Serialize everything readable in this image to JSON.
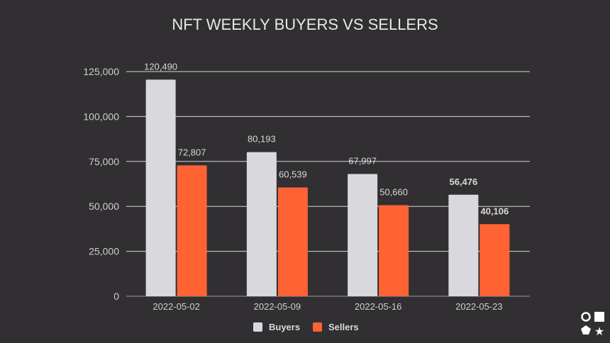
{
  "chart_data": {
    "type": "bar",
    "title": "NFT WEEKLY BUYERS VS SELLERS",
    "xlabel": "",
    "ylabel": "",
    "categories": [
      "2022-05-02",
      "2022-05-09",
      "2022-05-16",
      "2022-05-23"
    ],
    "series": [
      {
        "name": "Buyers",
        "color": "#d9d9dd",
        "values": [
          120490,
          80193,
          67997,
          56476
        ],
        "labels": [
          "120,490",
          "80,193",
          "67,997",
          "56,476"
        ]
      },
      {
        "name": "Sellers",
        "color": "#ff6333",
        "values": [
          72807,
          60539,
          50660,
          40106
        ],
        "labels": [
          "72,807",
          "60,539",
          "50,660",
          "40,106"
        ]
      }
    ],
    "ylim": [
      0,
      125000
    ],
    "yticks": [
      0,
      25000,
      50000,
      75000,
      100000,
      125000
    ],
    "ytick_labels": [
      "0",
      "25,000",
      "50,000",
      "75,000",
      "100,000",
      "125,000"
    ],
    "grid": true,
    "legend": "bottom"
  }
}
